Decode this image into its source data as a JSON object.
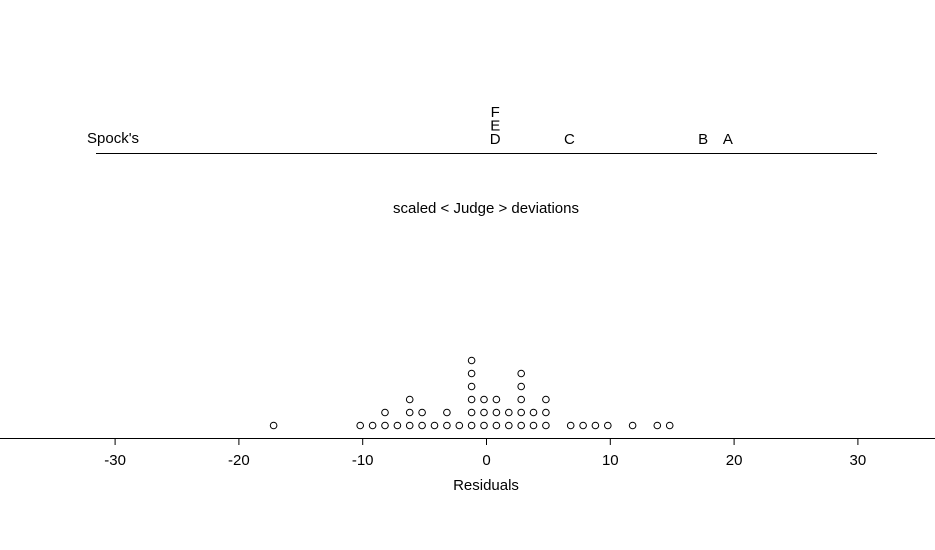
{
  "chart_data": [
    {
      "type": "scatter",
      "title": "scaled < Judge > deviations",
      "row_label": "Spock's",
      "points": [
        {
          "label": "A",
          "x": 19.5
        },
        {
          "label": "B",
          "x": 17.5
        },
        {
          "label": "C",
          "x": 6.7
        },
        {
          "label": "D",
          "x": 0.7
        },
        {
          "label": "E",
          "x": 0.7
        },
        {
          "label": "F",
          "x": 0.7
        }
      ]
    },
    {
      "type": "scatter",
      "xlabel": "Residuals",
      "xlim": [
        -30,
        30
      ],
      "xticks": [
        "-30",
        "-20",
        "-10",
        "0",
        "10",
        "20",
        "30"
      ],
      "xtick_values": [
        -30,
        -20,
        -10,
        0,
        10,
        20,
        30
      ],
      "marker": "open-circle",
      "stacks": [
        {
          "x": -17.2,
          "count": 1
        },
        {
          "x": -10.2,
          "count": 1
        },
        {
          "x": -9.2,
          "count": 1
        },
        {
          "x": -8.2,
          "count": 2
        },
        {
          "x": -7.2,
          "count": 1
        },
        {
          "x": -6.2,
          "count": 3
        },
        {
          "x": -5.2,
          "count": 2
        },
        {
          "x": -4.2,
          "count": 1
        },
        {
          "x": -3.2,
          "count": 2
        },
        {
          "x": -2.2,
          "count": 1
        },
        {
          "x": -1.2,
          "count": 6
        },
        {
          "x": -0.2,
          "count": 3
        },
        {
          "x": 0.8,
          "count": 3
        },
        {
          "x": 1.8,
          "count": 2
        },
        {
          "x": 2.8,
          "count": 5
        },
        {
          "x": 3.8,
          "count": 2
        },
        {
          "x": 4.8,
          "count": 3
        },
        {
          "x": 6.8,
          "count": 1
        },
        {
          "x": 7.8,
          "count": 1
        },
        {
          "x": 8.8,
          "count": 1
        },
        {
          "x": 9.8,
          "count": 1
        },
        {
          "x": 11.8,
          "count": 1
        },
        {
          "x": 13.8,
          "count": 1
        },
        {
          "x": 14.8,
          "count": 1
        }
      ]
    }
  ]
}
